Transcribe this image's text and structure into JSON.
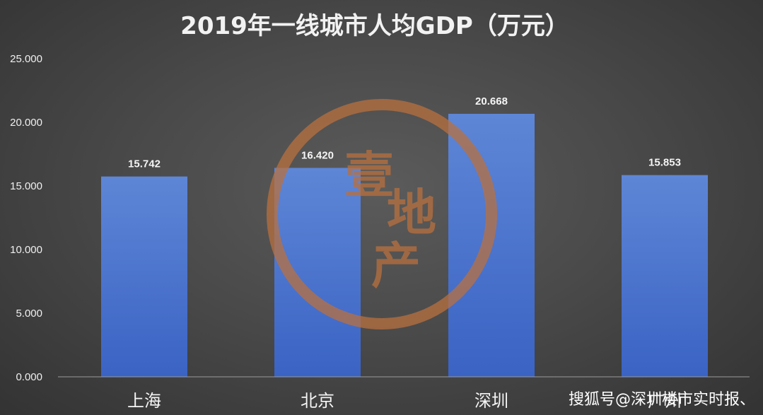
{
  "chart_data": {
    "type": "bar",
    "title": "2019年一线城市人均GDP（万元）",
    "categories": [
      "上海",
      "北京",
      "深圳",
      "广州"
    ],
    "values": [
      15.742,
      16.42,
      20.668,
      15.853
    ],
    "data_labels": [
      "15.742",
      "16.420",
      "20.668",
      "15.853"
    ],
    "ylim": [
      0,
      25
    ],
    "yticks": [
      "0.000",
      "5.000",
      "10.000",
      "15.000",
      "20.000",
      "25.000"
    ],
    "ytick_values": [
      0,
      5,
      10,
      15,
      20,
      25
    ],
    "xlabel": "",
    "ylabel": "",
    "grid": false,
    "legend": "none",
    "bar_color_top": "#5e86d6",
    "bar_color_bottom": "#3a63c4"
  },
  "watermark": {
    "chars": [
      "壹",
      "地",
      "产"
    ],
    "color": "#b8703f"
  },
  "credit": "搜狐号@深圳楼市实时报、"
}
